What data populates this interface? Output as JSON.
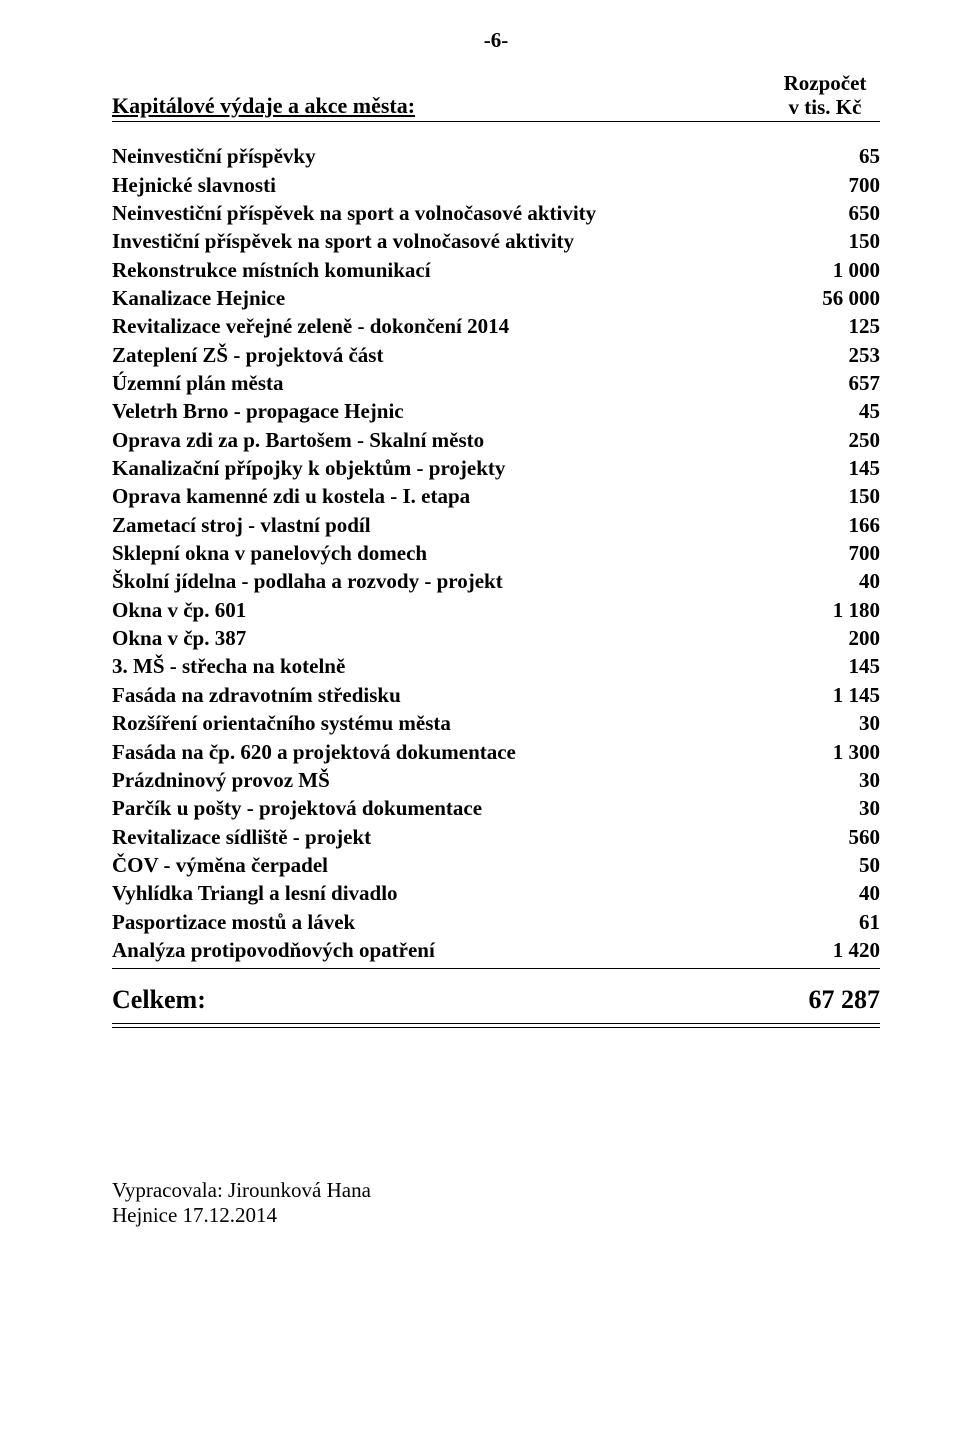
{
  "page_number_label": "-6-",
  "header": {
    "section_title": "Kapitálové výdaje a akce města:",
    "budget_line1": "Rozpočet",
    "budget_line2": "v tis. Kč"
  },
  "items": [
    {
      "label": "Neinvestiční příspěvky",
      "value": "65"
    },
    {
      "label": "Hejnické slavnosti",
      "value": "700"
    },
    {
      "label": "Neinvestiční příspěvek na sport a volnočasové aktivity",
      "value": "650"
    },
    {
      "label": "Investiční příspěvek na sport a volnočasové aktivity",
      "value": "150"
    },
    {
      "label": "Rekonstrukce místních komunikací",
      "value": "1 000"
    },
    {
      "label": "Kanalizace Hejnice",
      "value": "56 000"
    },
    {
      "label": "Revitalizace veřejné zeleně - dokončení 2014",
      "value": "125"
    },
    {
      "label": "Zateplení ZŠ - projektová část",
      "value": "253"
    },
    {
      "label": "Územní plán města",
      "value": "657"
    },
    {
      "label": "Veletrh Brno - propagace Hejnic",
      "value": "45"
    },
    {
      "label": "Oprava zdi za p. Bartošem - Skalní město",
      "value": "250"
    },
    {
      "label": "Kanalizační přípojky k objektům - projekty",
      "value": "145"
    },
    {
      "label": "Oprava kamenné zdi u kostela - I. etapa",
      "value": "150"
    },
    {
      "label": "Zametací stroj - vlastní podíl",
      "value": "166"
    },
    {
      "label": "Sklepní okna v panelových domech",
      "value": "700"
    },
    {
      "label": "Školní jídelna - podlaha a rozvody - projekt",
      "value": "40"
    },
    {
      "label": "Okna v čp. 601",
      "value": "1 180"
    },
    {
      "label": "Okna v čp. 387",
      "value": "200"
    },
    {
      "label": "3. MŠ - střecha na kotelně",
      "value": "145"
    },
    {
      "label": "Fasáda na zdravotním středisku",
      "value": "1 145"
    },
    {
      "label": "Rozšíření orientačního systému města",
      "value": "30"
    },
    {
      "label": "Fasáda na čp. 620 a projektová dokumentace",
      "value": "1 300"
    },
    {
      "label": "Prázdninový provoz MŠ",
      "value": "30"
    },
    {
      "label": "Parčík u pošty - projektová dokumentace",
      "value": "30"
    },
    {
      "label": "Revitalizace sídliště - projekt",
      "value": "560"
    },
    {
      "label": "ČOV - výměna čerpadel",
      "value": "50"
    },
    {
      "label": "Vyhlídka Triangl a lesní divadlo",
      "value": "40"
    },
    {
      "label": "Pasportizace mostů a lávek",
      "value": "61"
    },
    {
      "label": "Analýza protipovodňových opatření",
      "value": "1 420"
    }
  ],
  "total": {
    "label": "Celkem:",
    "value": "67 287"
  },
  "footer": {
    "line1": "Vypracovala: Jirounková Hana",
    "line2": "Hejnice 17.12.2014"
  }
}
